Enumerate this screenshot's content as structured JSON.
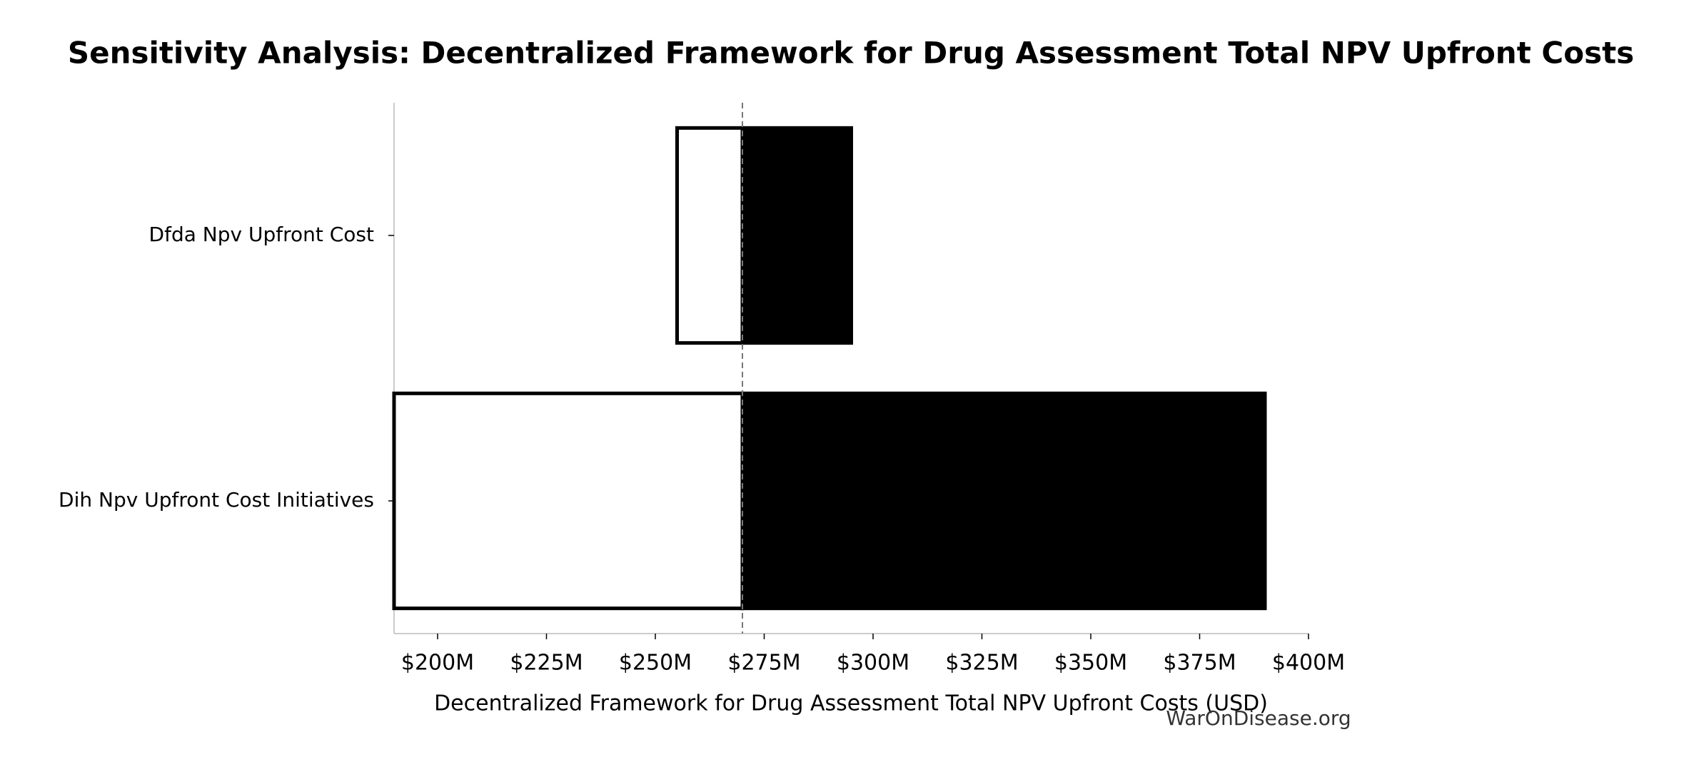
{
  "chart_data": {
    "type": "tornado",
    "title": "Sensitivity Analysis: Decentralized Framework for Drug Assessment Total NPV Upfront Costs",
    "x_label": "Decentralized Framework for Drug Assessment Total NPV Upfront Costs (USD)",
    "source": "WarOnDisease.org",
    "categories": [
      "Dfda Npv Upfront Cost",
      "Dih Npv Upfront Cost Initiatives"
    ],
    "baseline": 270,
    "series": [
      {
        "color": "#ffffff",
        "values": [
          255,
          190
        ]
      },
      {
        "color": "#000000",
        "values": [
          295,
          390
        ]
      }
    ],
    "xlim": [
      190,
      400
    ],
    "xticks": [
      {
        "value": 200,
        "label": "$200M"
      },
      {
        "value": 225,
        "label": "$225M"
      },
      {
        "value": 250,
        "label": "$250M"
      },
      {
        "value": 275,
        "label": "$275M"
      },
      {
        "value": 300,
        "label": "$300M"
      },
      {
        "value": 325,
        "label": "$325M"
      },
      {
        "value": 350,
        "label": "$350M"
      },
      {
        "value": 375,
        "label": "$375M"
      },
      {
        "value": 400,
        "label": "$400M"
      }
    ]
  }
}
